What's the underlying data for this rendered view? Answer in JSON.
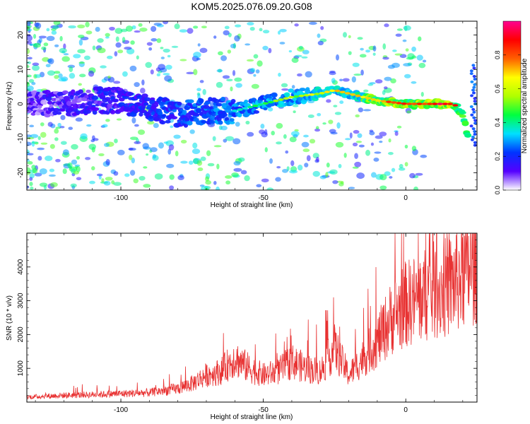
{
  "title": "KOM5.2025.076.09.20.G08",
  "colors": {
    "snr_line": "#e83232",
    "spectrogram_low": "#5a00ff",
    "frame": "#000000"
  },
  "chart_data": [
    {
      "type": "heatmap",
      "xlabel": "Height of straight line (km)",
      "ylabel": "Frequency (Hz)",
      "xlim": [
        -133,
        25
      ],
      "ylim": [
        -25,
        24
      ],
      "x_ticks": [
        -100,
        -50,
        0
      ],
      "y_ticks": [
        20,
        10,
        0,
        -10,
        -20
      ],
      "ridge": {
        "description_points_x": [
          -133,
          -120,
          -110,
          -100,
          -90,
          -80,
          -70,
          -60,
          -50,
          -40,
          -30,
          -25,
          -20,
          -10,
          0,
          10,
          17,
          20,
          22
        ],
        "description_points_freq": [
          0,
          0,
          1,
          1,
          -1,
          -3,
          -2,
          -2,
          0,
          2,
          3,
          4,
          3,
          1,
          0,
          0,
          0,
          -3,
          -10
        ]
      },
      "colorbar": {
        "label": "Normalized spectral amplitude",
        "range": [
          0,
          1
        ],
        "ticks": [
          "0.0",
          "0.2",
          "0.4",
          "0.6",
          "0.8"
        ],
        "tick_values": [
          0,
          0.2,
          0.4,
          0.6,
          0.8
        ],
        "stops": [
          "#ffffff",
          "#5500ff",
          "#0033ff",
          "#00e0ff",
          "#00ff40",
          "#b0ff00",
          "#ffff00",
          "#ff6000",
          "#ff0000",
          "#ff0090"
        ]
      }
    },
    {
      "type": "line",
      "xlabel": "Height of straight line (km)",
      "ylabel": "SNR (10 * v/v)",
      "xlim": [
        -133,
        25
      ],
      "ylim": [
        0,
        5000
      ],
      "x_ticks": [
        -100,
        -50,
        0
      ],
      "y_ticks": [
        1000,
        2000,
        3000,
        4000
      ],
      "series": [
        {
          "x": [
            -133,
            -120,
            -110,
            -100,
            -90,
            -80,
            -75,
            -70,
            -65,
            -60,
            -55,
            -50,
            -45,
            -40,
            -35,
            -30,
            -25,
            -20,
            -15,
            -10,
            -5,
            0,
            5,
            10,
            15,
            20,
            25
          ],
          "values": [
            150,
            200,
            220,
            250,
            280,
            400,
            550,
            800,
            900,
            1300,
            1000,
            800,
            900,
            1200,
            1000,
            900,
            1600,
            800,
            1300,
            1800,
            2500,
            2900,
            3100,
            3300,
            3400,
            3800,
            4100
          ]
        }
      ]
    }
  ]
}
